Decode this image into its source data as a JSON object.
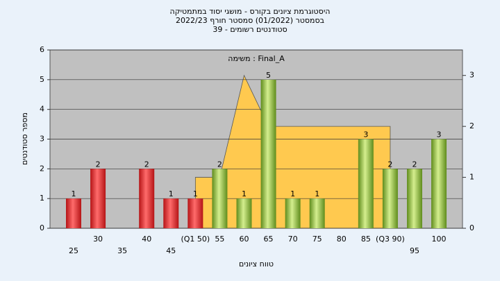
{
  "chart_data": {
    "type": "bar",
    "title": "היסטוגרמת ציונים בקורס - מושגי יסוד במתמטיקה",
    "subtitle": "בסמסטר (01/2022)  סמסטר חורף 2022/23",
    "subtitle2": "סטודנטים רשומים - 39",
    "annotation": "משימה : Final_A",
    "x_label": "טווח ציונים",
    "y_label": "מספר סטודנטים",
    "categories": [
      "25",
      "30",
      "35",
      "40",
      "45",
      "(Q1 50)",
      "55",
      "60",
      "65",
      "70",
      "75",
      "80",
      "85",
      "(Q3 90)",
      "95",
      "100"
    ],
    "values": [
      1,
      2,
      0,
      2,
      1,
      1,
      2,
      1,
      5,
      1,
      1,
      0,
      3,
      2,
      2,
      3
    ],
    "colors": [
      "#e0262b",
      "#e0262b",
      "#e0262b",
      "#e0262b",
      "#e0262b",
      "#e0262b",
      "#8fbf3a",
      "#8fbf3a",
      "#8fbf3a",
      "#8fbf3a",
      "#8fbf3a",
      "#8fbf3a",
      "#8fbf3a",
      "#8fbf3a",
      "#8fbf3a",
      "#8fbf3a"
    ],
    "area": {
      "axis": "y2",
      "color": "#ffc94f",
      "values": [
        null,
        null,
        null,
        null,
        null,
        1,
        1,
        3,
        2,
        2,
        2,
        2,
        2,
        2,
        null,
        null
      ]
    },
    "ylim": [
      0,
      6
    ],
    "yticks": [
      0,
      1,
      2,
      3,
      4,
      5,
      6
    ],
    "y2lim": [
      0,
      3.5
    ],
    "y2ticks": [
      0,
      1,
      2,
      3
    ],
    "grid": true
  }
}
